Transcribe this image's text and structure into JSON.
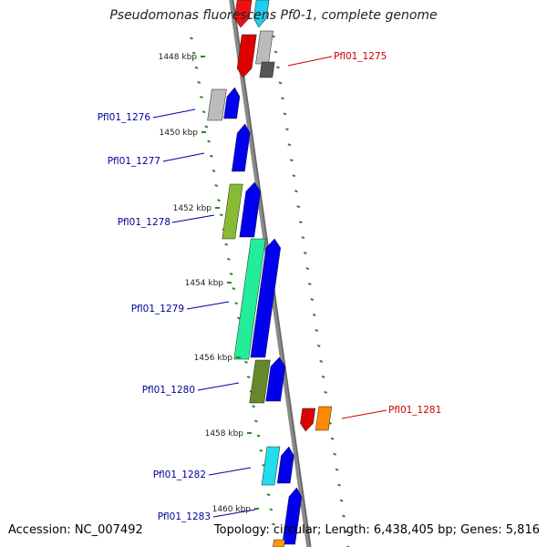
{
  "title": "Pseudomonas fluorescens Pf0-1, complete genome",
  "footer": {
    "accession": "Accession: NC_007492",
    "summary": "Topology: circular; Length: 6,438,405 bp; Genes: 5,816"
  },
  "colors": {
    "backbone": "#8a8a8a",
    "forward_label": "#cc0000",
    "reverse_label": "#000099",
    "tick": "#2a8a22",
    "cds": "#0000ee"
  },
  "scale_ticks": [
    "1448 kbp",
    "1450 kbp",
    "1452 kbp",
    "1454 kbp",
    "1456 kbp",
    "1458 kbp",
    "1460 kbp"
  ],
  "gene_labels": [
    "Pfl01_1275",
    "Pfl01_1276",
    "Pfl01_1277",
    "Pfl01_1278",
    "Pfl01_1279",
    "Pfl01_1280",
    "Pfl01_1281",
    "Pfl01_1282",
    "Pfl01_1283"
  ]
}
